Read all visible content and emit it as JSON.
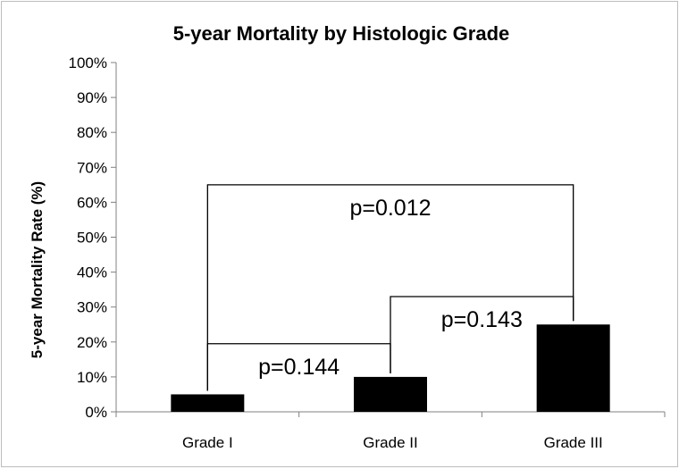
{
  "chart_data": {
    "type": "bar",
    "title": "5-year Mortality by Histologic Grade",
    "xlabel": "",
    "ylabel": "5-year Mortality Rate (%)",
    "ylim": [
      0,
      100
    ],
    "yticks": [
      "0%",
      "10%",
      "20%",
      "30%",
      "40%",
      "50%",
      "60%",
      "70%",
      "80%",
      "90%",
      "100%"
    ],
    "categories": [
      "Grade I",
      "Grade II",
      "Grade III"
    ],
    "values": [
      5,
      10,
      25
    ],
    "bar_color": "#000000",
    "grid": false,
    "annotations": [
      {
        "text": "p=0.012",
        "from": 0,
        "to": 2,
        "level": 65
      },
      {
        "text": "p=0.143",
        "from": 1,
        "to": 2,
        "level": 33
      },
      {
        "text": "p=0.144",
        "from": 0,
        "to": 1,
        "level": 19.5
      }
    ]
  }
}
